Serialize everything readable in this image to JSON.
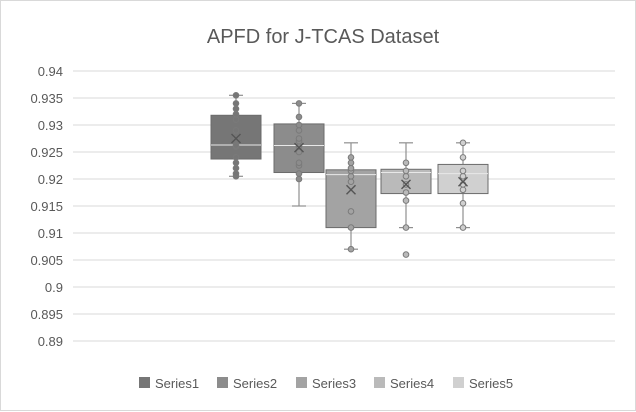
{
  "chart_data": {
    "type": "box",
    "title": "APFD for J-TCAS Dataset",
    "xlabel": "",
    "ylabel": "",
    "ylim": [
      0.89,
      0.94
    ],
    "yticks": [
      "0.94",
      "0.935",
      "0.93",
      "0.925",
      "0.92",
      "0.915",
      "0.91",
      "0.905",
      "0.9",
      "0.895",
      "0.89"
    ],
    "grid": true,
    "legend_position": "bottom",
    "series": [
      {
        "name": "Series1",
        "color": "#767676",
        "min": 0.9205,
        "q1": 0.9237,
        "median": 0.9263,
        "q3": 0.9318,
        "max": 0.9355,
        "mean": 0.9275,
        "points": [
          0.9205,
          0.921,
          0.922,
          0.923,
          0.924,
          0.926,
          0.9262,
          0.9275,
          0.928,
          0.929,
          0.931,
          0.932,
          0.933,
          0.934,
          0.9355
        ]
      },
      {
        "name": "Series2",
        "color": "#8c8c8c",
        "min": 0.915,
        "q1": 0.9212,
        "median": 0.9262,
        "q3": 0.9302,
        "max": 0.934,
        "mean": 0.9258,
        "points": [
          0.92,
          0.921,
          0.9225,
          0.923,
          0.925,
          0.926,
          0.927,
          0.9275,
          0.929,
          0.93,
          0.9315,
          0.934
        ]
      },
      {
        "name": "Series3",
        "color": "#a3a3a3",
        "min": 0.907,
        "q1": 0.911,
        "median": 0.9208,
        "q3": 0.9217,
        "max": 0.9267,
        "mean": 0.918,
        "points": [
          0.907,
          0.911,
          0.914,
          0.9195,
          0.9205,
          0.9215,
          0.922,
          0.923,
          0.924
        ]
      },
      {
        "name": "Series4",
        "color": "#bababa",
        "min": 0.911,
        "q1": 0.9173,
        "median": 0.9212,
        "q3": 0.9218,
        "max": 0.9267,
        "mean": 0.919,
        "points": [
          0.906,
          0.911,
          0.916,
          0.9175,
          0.919,
          0.9205,
          0.9215,
          0.923
        ]
      },
      {
        "name": "Series5",
        "color": "#d0d0d0",
        "min": 0.911,
        "q1": 0.9173,
        "median": 0.921,
        "q3": 0.9227,
        "max": 0.9267,
        "mean": 0.9195,
        "points": [
          0.911,
          0.9155,
          0.918,
          0.919,
          0.9205,
          0.9215,
          0.924,
          0.9267
        ]
      }
    ]
  }
}
